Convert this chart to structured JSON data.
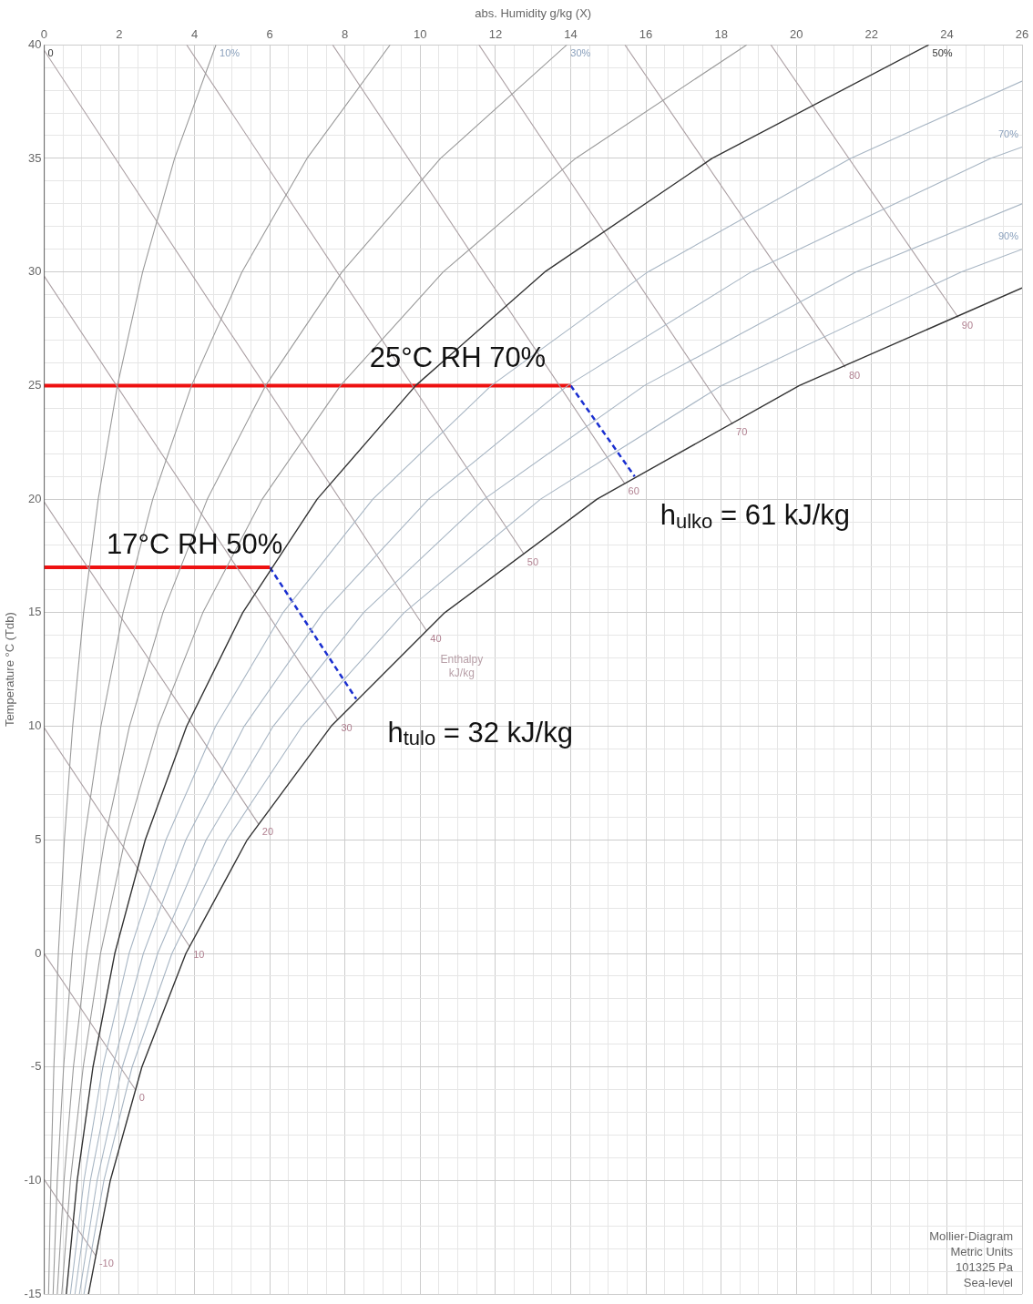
{
  "chart_data": {
    "type": "line",
    "xlabel": "abs. Humidity g/kg (X)",
    "ylabel": "Temperature °C (Tdb)",
    "xlim": [
      0,
      26
    ],
    "ylim": [
      -15,
      40
    ],
    "xticks": [
      0,
      {
        "value": 0.5,
        "label": null
      },
      {
        "value": 1,
        "label": null
      },
      {
        "value": 1.5,
        "label": null
      },
      2,
      {
        "value": 2.5,
        "label": null
      },
      {
        "value": 3,
        "label": null
      },
      {
        "value": 3.5,
        "label": null
      },
      4,
      {
        "value": 4.5,
        "label": null
      },
      {
        "value": 5,
        "label": null
      },
      {
        "value": 5.5,
        "label": null
      },
      6,
      {
        "value": 6.5,
        "label": null
      },
      {
        "value": 7,
        "label": null
      },
      {
        "value": 7.5,
        "label": null
      },
      8,
      {
        "value": 8.5,
        "label": null
      },
      {
        "value": 9,
        "label": null
      },
      {
        "value": 9.5,
        "label": null
      },
      10,
      {
        "value": 10.5,
        "label": null
      },
      {
        "value": 11,
        "label": null
      },
      {
        "value": 11.5,
        "label": null
      },
      12,
      {
        "value": 12.5,
        "label": null
      },
      {
        "value": 13,
        "label": null
      },
      {
        "value": 13.5,
        "label": null
      },
      14,
      {
        "value": 14.5,
        "label": null
      },
      {
        "value": 15,
        "label": null
      },
      {
        "value": 15.5,
        "label": null
      },
      16,
      {
        "value": 16.5,
        "label": null
      },
      {
        "value": 17,
        "label": null
      },
      {
        "value": 17.5,
        "label": null
      },
      18,
      {
        "value": 18.5,
        "label": null
      },
      {
        "value": 19,
        "label": null
      },
      {
        "value": 19.5,
        "label": null
      },
      20,
      {
        "value": 20.5,
        "label": null
      },
      {
        "value": 21,
        "label": null
      },
      {
        "value": 21.5,
        "label": null
      },
      22,
      {
        "value": 22.5,
        "label": null
      },
      {
        "value": 23,
        "label": null
      },
      {
        "value": 23.5,
        "label": null
      },
      24,
      {
        "value": 24.5,
        "label": null
      },
      {
        "value": 25,
        "label": null
      },
      {
        "value": 25.5,
        "label": null
      },
      26
    ],
    "yticks": [
      -15,
      {
        "value": -14,
        "label": null
      },
      {
        "value": -13,
        "label": null
      },
      {
        "value": -12,
        "label": null
      },
      {
        "value": -11,
        "label": null
      },
      -10,
      {
        "value": -9,
        "label": null
      },
      {
        "value": -8,
        "label": null
      },
      {
        "value": -7,
        "label": null
      },
      {
        "value": -6,
        "label": null
      },
      -5,
      {
        "value": -4,
        "label": null
      },
      {
        "value": -3,
        "label": null
      },
      {
        "value": -2,
        "label": null
      },
      {
        "value": -1,
        "label": null
      },
      0,
      {
        "value": 1,
        "label": null
      },
      {
        "value": 2,
        "label": null
      },
      {
        "value": 3,
        "label": null
      },
      {
        "value": 4,
        "label": null
      },
      5,
      {
        "value": 6,
        "label": null
      },
      {
        "value": 7,
        "label": null
      },
      {
        "value": 8,
        "label": null
      },
      {
        "value": 9,
        "label": null
      },
      10,
      {
        "value": 11,
        "label": null
      },
      {
        "value": 12,
        "label": null
      },
      {
        "value": 13,
        "label": null
      },
      {
        "value": 14,
        "label": null
      },
      15,
      {
        "value": 16,
        "label": null
      },
      {
        "value": 17,
        "label": null
      },
      {
        "value": 18,
        "label": null
      },
      {
        "value": 19,
        "label": null
      },
      20,
      {
        "value": 21,
        "label": null
      },
      {
        "value": 22,
        "label": null
      },
      {
        "value": 23,
        "label": null
      },
      {
        "value": 24,
        "label": null
      },
      25,
      {
        "value": 26,
        "label": null
      },
      {
        "value": 27,
        "label": null
      },
      {
        "value": 28,
        "label": null
      },
      {
        "value": 29,
        "label": null
      },
      30,
      {
        "value": 31,
        "label": null
      },
      {
        "value": 32,
        "label": null
      },
      {
        "value": 33,
        "label": null
      },
      {
        "value": 34,
        "label": null
      },
      35,
      {
        "value": 36,
        "label": null
      },
      {
        "value": 37,
        "label": null
      },
      {
        "value": 38,
        "label": null
      },
      {
        "value": 39,
        "label": null
      },
      40
    ],
    "grid": true,
    "legend": false,
    "marker": "none",
    "series": [
      {
        "name": "0",
        "color": "#333333",
        "x": [
          0,
          0
        ],
        "values": [
          -15,
          40
        ]
      },
      {
        "name": "10%",
        "color": "#9a9a9a",
        "x": [
          0.12,
          0.18,
          0.26,
          0.38,
          0.54,
          0.76,
          1.05,
          1.44,
          1.95,
          2.62,
          3.47,
          4.57
        ],
        "values": [
          -15,
          -10,
          -5,
          0,
          5,
          10,
          15,
          20,
          25,
          30,
          35,
          40
        ]
      },
      {
        "color": "#9a9a9a",
        "x": [
          0.24,
          0.35,
          0.52,
          0.75,
          1.07,
          1.51,
          2.1,
          2.89,
          3.92,
          5.26,
          6.99,
          9.2
        ],
        "values": [
          -15,
          -10,
          -5,
          0,
          5,
          10,
          15,
          20,
          25,
          30,
          35,
          40
        ]
      },
      {
        "name": "30%",
        "color": "#9a9a9a",
        "x": [
          0.35,
          0.53,
          0.78,
          1.13,
          1.61,
          2.27,
          3.16,
          4.34,
          5.89,
          7.92,
          10.54,
          13.9
        ],
        "values": [
          -15,
          -10,
          -5,
          0,
          5,
          10,
          15,
          20,
          25,
          30,
          35,
          40
        ]
      },
      {
        "color": "#9a9a9a",
        "x": [
          0.47,
          0.7,
          1.04,
          1.5,
          2.15,
          3.03,
          4.22,
          5.8,
          7.88,
          10.61,
          14.13,
          18.68
        ],
        "values": [
          -15,
          -10,
          -5,
          0,
          5,
          10,
          15,
          20,
          25,
          30,
          35,
          40
        ]
      },
      {
        "name": "50%",
        "color": "#333333",
        "x": [
          0.59,
          0.88,
          1.3,
          1.88,
          2.69,
          3.79,
          5.28,
          7.26,
          9.88,
          13.31,
          17.76,
          23.52
        ],
        "values": [
          -15,
          -10,
          -5,
          0,
          5,
          10,
          15,
          20,
          25,
          30,
          35,
          40
        ]
      },
      {
        "color": "#a8b6c4",
        "x": [
          0.7,
          1.06,
          1.56,
          2.26,
          3.24,
          4.56,
          6.35,
          8.74,
          11.89,
          16.05,
          21.44,
          26
        ],
        "values": [
          -15,
          -10,
          -5,
          0,
          5,
          10,
          15,
          20,
          25,
          30,
          35,
          38.4
        ]
      },
      {
        "name": "70%",
        "color": "#a8b6c4",
        "x": [
          0.82,
          1.23,
          1.82,
          2.64,
          3.77,
          5.32,
          7.42,
          10.22,
          13.92,
          18.8,
          25.16,
          26
        ],
        "values": [
          -15,
          -10,
          -5,
          0,
          5,
          10,
          15,
          20,
          25,
          30,
          35,
          35.5
        ]
      },
      {
        "color": "#a8b6c4",
        "x": [
          0.94,
          1.41,
          2.08,
          3.02,
          4.31,
          6.09,
          8.49,
          11.7,
          15.96,
          21.58,
          26
        ],
        "values": [
          -15,
          -10,
          -5,
          0,
          5,
          10,
          15,
          20,
          25,
          30,
          33
        ]
      },
      {
        "name": "90%",
        "color": "#a8b6c4",
        "x": [
          1.06,
          1.59,
          2.34,
          3.4,
          4.86,
          6.86,
          9.57,
          13.2,
          18.01,
          24.38,
          26
        ],
        "values": [
          -15,
          -10,
          -5,
          0,
          5,
          10,
          15,
          20,
          25,
          30,
          31
        ]
      },
      {
        "color": "#333333",
        "x": [
          1.18,
          1.76,
          2.6,
          3.77,
          5.4,
          7.63,
          10.65,
          14.7,
          20.08,
          26
        ],
        "values": [
          -15,
          -10,
          -5,
          0,
          5,
          10,
          15,
          20,
          25,
          29.3
        ]
      },
      {
        "name": "-10",
        "color": "#ab9fa3",
        "x": [
          0,
          1.37
        ],
        "values": [
          -9.94,
          -13.3
        ]
      },
      {
        "name": "0",
        "color": "#ab9fa3",
        "x": [
          0,
          2.43
        ],
        "values": [
          0,
          -6
        ]
      },
      {
        "name": "10",
        "color": "#ab9fa3",
        "x": [
          0,
          3.87
        ],
        "values": [
          9.94,
          0.3
        ]
      },
      {
        "name": "20",
        "color": "#ab9fa3",
        "x": [
          0,
          5.7
        ],
        "values": [
          19.88,
          5.7
        ]
      },
      {
        "name": "30",
        "color": "#ab9fa3",
        "x": [
          0,
          7.8
        ],
        "values": [
          29.82,
          10.3
        ]
      },
      {
        "name": "40",
        "color": "#ab9fa3",
        "x": [
          0,
          10.17
        ],
        "values": [
          39.76,
          14.2
        ]
      },
      {
        "name": "50",
        "color": "#ab9fa3",
        "x": [
          3.79,
          12.75
        ],
        "values": [
          40,
          17.6
        ]
      },
      {
        "name": "60",
        "color": "#ab9fa3",
        "x": [
          7.67,
          15.43
        ],
        "values": [
          40,
          20.7
        ]
      },
      {
        "name": "70",
        "color": "#ab9fa3",
        "x": [
          11.56,
          18.3
        ],
        "values": [
          40,
          23.3
        ]
      },
      {
        "name": "80",
        "color": "#ab9fa3",
        "x": [
          15.44,
          21.3
        ],
        "values": [
          40,
          25.8
        ]
      },
      {
        "name": "90",
        "color": "#ab9fa3",
        "x": [
          19.32,
          24.3
        ],
        "values": [
          40,
          28
        ]
      },
      {
        "color": "#ee1111",
        "x": [
          0,
          14
        ],
        "values": [
          25,
          25
        ]
      },
      {
        "color": "#ee1111",
        "x": [
          0,
          6
        ],
        "values": [
          17,
          17
        ]
      },
      {
        "color": "#1a2fd0",
        "line_style": "dashed",
        "x": [
          14,
          15.7
        ],
        "values": [
          25,
          21
        ]
      },
      {
        "color": "#1a2fd0",
        "line_style": "dashed",
        "x": [
          6,
          8.3
        ],
        "values": [
          17,
          11.2
        ]
      }
    ],
    "annotations": [
      "25°C RH 70%",
      "17°C RH 50%",
      "h$_{ulko}$ = 61 kJ/kg",
      "h$_{tulo}$ = 32 kJ/kg",
      "Enthalpy\nkJ/kg",
      "Mollier-Diagram\nMetric Units\n101325 Pa\nSea-level"
    ]
  }
}
